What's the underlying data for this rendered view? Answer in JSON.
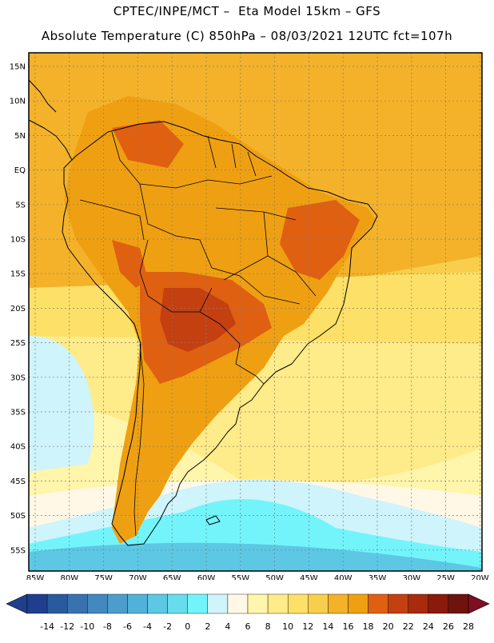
{
  "header": {
    "line1": "CPTEC/INPE/MCT –  Eta Model 15km – GFS",
    "line2": "Absolute Temperature (C) 850hPa – 08/03/2021 12UTC fct=107h"
  },
  "map": {
    "lat_labels": [
      "15N",
      "10N",
      "5N",
      "EQ",
      "5S",
      "10S",
      "15S",
      "20S",
      "25S",
      "30S",
      "35S",
      "40S",
      "45S",
      "50S",
      "55S"
    ],
    "lon_labels": [
      "85W",
      "80W",
      "75W",
      "70W",
      "65W",
      "60W",
      "55W",
      "50W",
      "45W",
      "40W",
      "35W",
      "30W",
      "25W",
      "20W"
    ]
  },
  "legend": {
    "ticks": [
      "-14",
      "-12",
      "-10",
      "-8",
      "-6",
      "-4",
      "-2",
      "0",
      "2",
      "4",
      "6",
      "8",
      "10",
      "12",
      "14",
      "16",
      "18",
      "20",
      "22",
      "24",
      "26",
      "28"
    ],
    "colors": [
      "#1f3f8e",
      "#2a5a9e",
      "#3a72b0",
      "#4488c0",
      "#4c9dcc",
      "#52b1d8",
      "#5cc8e4",
      "#67dcec",
      "#73f4fb",
      "#cff4fb",
      "#fff8e6",
      "#fff5ab",
      "#feeb89",
      "#fde068",
      "#f8cf4c",
      "#f3b22a",
      "#efa012",
      "#e06012",
      "#c44010",
      "#a92a0c",
      "#8a1a0c",
      "#6e140c"
    ],
    "low_color": "#1f3f8e",
    "high_color": "#7e0f22"
  },
  "colors": {
    "ocean_warm": "#f3c05a",
    "ocean_mid": "#fde068",
    "ocean_cool": "#fff5ab",
    "ocean_pale": "#fff8e6",
    "ocean_cold": "#cff4fb",
    "ocean_colder": "#73f4fb",
    "ocean_coldest": "#5cc8e4",
    "land_orange": "#efa012",
    "land_hot": "#e06012",
    "land_hotter": "#c44010",
    "coast": "#000000",
    "grid": "#7a7a7a"
  }
}
